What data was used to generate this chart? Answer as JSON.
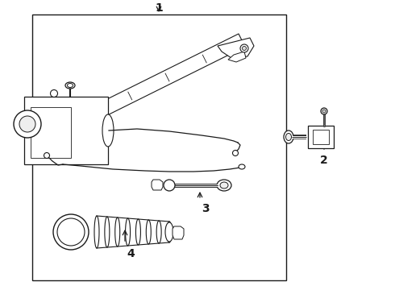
{
  "bg_color": "#ffffff",
  "lc": "#1a1a1a",
  "figsize": [
    4.9,
    3.6
  ],
  "dpi": 100,
  "title_label": "1",
  "label2": "2",
  "label3": "3",
  "label4": "4"
}
